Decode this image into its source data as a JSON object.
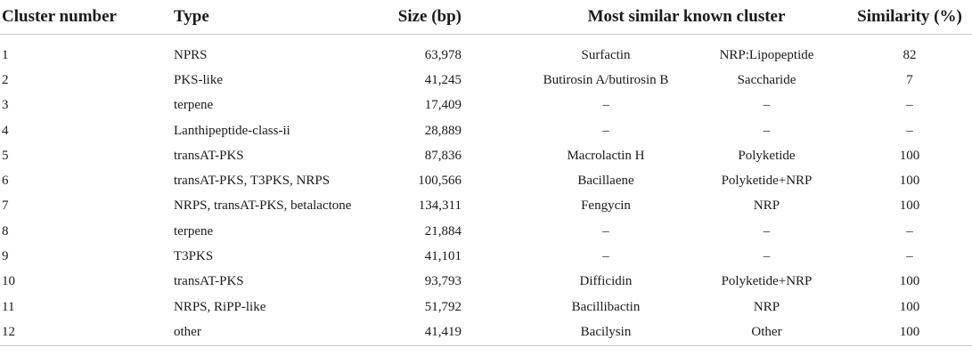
{
  "headers": {
    "cluster_number": "Cluster number",
    "type": "Type",
    "size": "Size (bp)",
    "most_similar": "Most similar known cluster",
    "similarity": "Similarity (%)"
  },
  "rows": [
    {
      "num": "1",
      "type": "NPRS",
      "size": "63,978",
      "cluster": "Surfactin",
      "class": "NRP:Lipopeptide",
      "sim": "82"
    },
    {
      "num": "2",
      "type": "PKS-like",
      "size": "41,245",
      "cluster": "Butirosin A/butirosin B",
      "class": "Saccharide",
      "sim": "7"
    },
    {
      "num": "3",
      "type": "terpene",
      "size": "17,409",
      "cluster": "–",
      "class": "–",
      "sim": "–"
    },
    {
      "num": "4",
      "type": "Lanthipeptide-class-ii",
      "size": "28,889",
      "cluster": "–",
      "class": "–",
      "sim": "–"
    },
    {
      "num": "5",
      "type": "transAT-PKS",
      "size": "87,836",
      "cluster": "Macrolactin H",
      "class": "Polyketide",
      "sim": "100"
    },
    {
      "num": "6",
      "type": "transAT-PKS, T3PKS, NRPS",
      "size": "100,566",
      "cluster": "Bacillaene",
      "class": "Polyketide+NRP",
      "sim": "100"
    },
    {
      "num": "7",
      "type": "NRPS, transAT-PKS, betalactone",
      "size": "134,311",
      "cluster": "Fengycin",
      "class": "NRP",
      "sim": "100"
    },
    {
      "num": "8",
      "type": "terpene",
      "size": "21,884",
      "cluster": "–",
      "class": "–",
      "sim": "–"
    },
    {
      "num": "9",
      "type": "T3PKS",
      "size": "41,101",
      "cluster": "–",
      "class": "–",
      "sim": "–"
    },
    {
      "num": "10",
      "type": "transAT-PKS",
      "size": "93,793",
      "cluster": "Difficidin",
      "class": "Polyketide+NRP",
      "sim": "100"
    },
    {
      "num": "11",
      "type": "NRPS, RiPP-like",
      "size": "51,792",
      "cluster": "Bacillibactin",
      "class": "NRP",
      "sim": "100"
    },
    {
      "num": "12",
      "type": "other",
      "size": "41,419",
      "cluster": "Bacilysin",
      "class": "Other",
      "sim": "100"
    }
  ]
}
